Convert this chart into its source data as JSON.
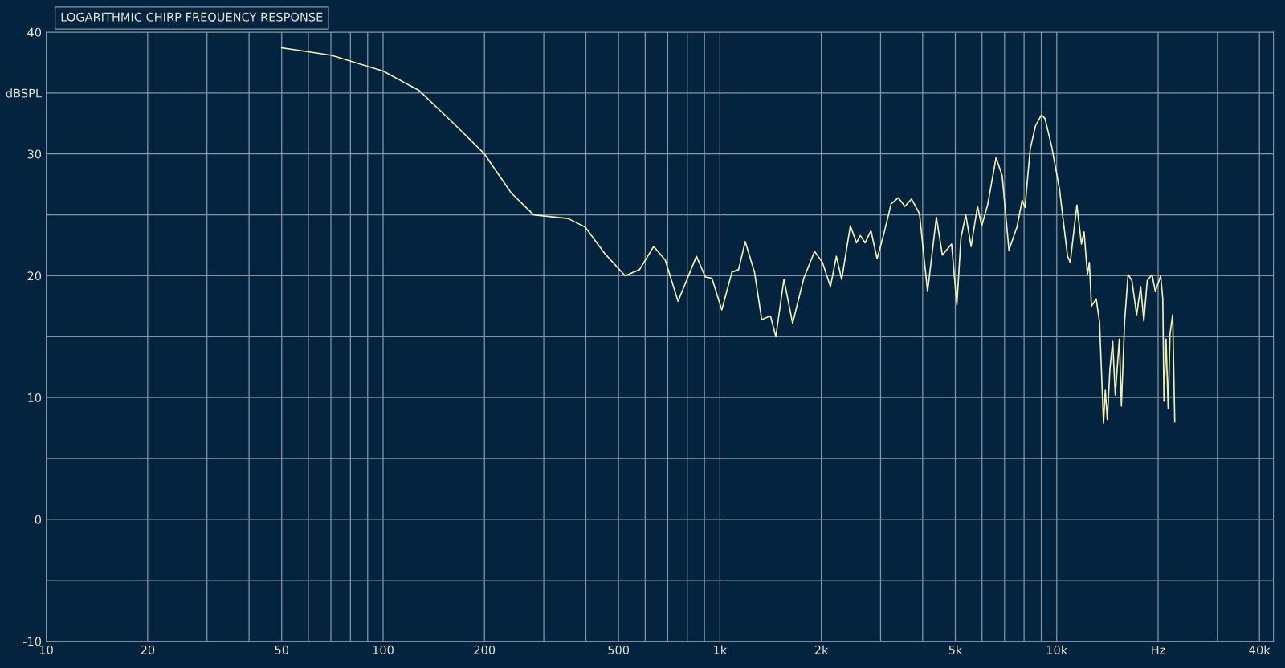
{
  "chart_data": {
    "type": "line",
    "title": "LOGARITHMIC CHIRP FREQUENCY RESPONSE",
    "log": "x",
    "grid": true,
    "marker": "none",
    "line_style": "solid",
    "xlim": [
      10,
      44000
    ],
    "ylim": [
      -10,
      40
    ],
    "xticks": [
      10,
      20,
      {
        "value": 30,
        "label": null
      },
      {
        "value": 40,
        "label": null
      },
      50,
      {
        "value": 60,
        "label": null
      },
      {
        "value": 70,
        "label": null
      },
      {
        "value": 80,
        "label": null
      },
      {
        "value": 90,
        "label": null
      },
      100,
      200,
      {
        "value": 300,
        "label": null
      },
      {
        "value": 400,
        "label": null
      },
      500,
      {
        "value": 600,
        "label": null
      },
      {
        "value": 700,
        "label": null
      },
      {
        "value": 800,
        "label": null
      },
      {
        "value": 900,
        "label": null
      },
      {
        "value": 1000,
        "label": "1k"
      },
      {
        "value": 2000,
        "label": "2k"
      },
      {
        "value": 3000,
        "label": null
      },
      {
        "value": 4000,
        "label": null
      },
      {
        "value": 5000,
        "label": "5k"
      },
      {
        "value": 6000,
        "label": null
      },
      {
        "value": 7000,
        "label": null
      },
      {
        "value": 8000,
        "label": null
      },
      {
        "value": 9000,
        "label": null
      },
      {
        "value": 10000,
        "label": "10k"
      },
      {
        "value": 20000,
        "label": "Hz"
      },
      {
        "value": 30000,
        "label": null
      },
      {
        "value": 40000,
        "label": "40k"
      }
    ],
    "yticks": [
      -10,
      {
        "value": -5,
        "label": null
      },
      0,
      {
        "value": 5,
        "label": null
      },
      10,
      {
        "value": 15,
        "label": null
      },
      20,
      {
        "value": 25,
        "label": null
      },
      30,
      {
        "value": 35,
        "label": "dBSPL"
      },
      40
    ],
    "series": [
      {
        "color": "#f0f0b4",
        "x": [
          50,
          70,
          100,
          128,
          162,
          200,
          240,
          280,
          354,
          398,
          456,
          523,
          577,
          636,
          688,
          751,
          852,
          905,
          947,
          1013,
          1086,
          1136,
          1189,
          1267,
          1331,
          1413,
          1466,
          1549,
          1644,
          1775,
          1910,
          2016,
          2129,
          2217,
          2299,
          2440,
          2544,
          2612,
          2699,
          2808,
          2929,
          3065,
          3224,
          3385,
          3543,
          3707,
          3914,
          4136,
          4393,
          4575,
          4874,
          5053,
          5196,
          5371,
          5570,
          5819,
          5989,
          6234,
          6608,
          6888,
          7214,
          7621,
          7897,
          8050,
          8343,
          8650,
          9010,
          9229,
          9663,
          10193,
          10768,
          10966,
          11480,
          11840,
          12058,
          12338,
          12500,
          12680,
          13100,
          13400,
          13770,
          13940,
          14130,
          14390,
          14660,
          14920,
          15340,
          15560,
          15910,
          16290,
          16720,
          17270,
          17750,
          18140,
          18570,
          19190,
          19620,
          20350,
          20650,
          20810,
          21110,
          21420,
          21690,
          22090,
          22410
        ],
        "values": [
          38.7,
          38.1,
          36.8,
          35.2,
          32.5,
          30.0,
          26.8,
          25.0,
          24.7,
          24.0,
          21.8,
          20.0,
          20.5,
          22.4,
          21.3,
          17.9,
          21.6,
          19.9,
          19.8,
          17.2,
          20.3,
          20.5,
          22.8,
          20.3,
          16.4,
          16.7,
          15.0,
          19.7,
          16.1,
          19.8,
          22.0,
          21.1,
          19.1,
          21.6,
          19.7,
          24.1,
          22.7,
          23.3,
          22.7,
          23.7,
          21.4,
          23.4,
          25.9,
          26.4,
          25.7,
          26.3,
          25.1,
          18.7,
          24.8,
          21.7,
          22.6,
          17.6,
          23.1,
          25.0,
          22.4,
          25.7,
          24.1,
          25.8,
          29.7,
          28.2,
          22.1,
          24.0,
          26.2,
          25.6,
          30.4,
          32.3,
          33.2,
          32.9,
          30.6,
          27.1,
          21.6,
          21.1,
          25.8,
          22.6,
          23.6,
          20.1,
          21.1,
          17.5,
          18.1,
          16.2,
          7.9,
          10.6,
          8.2,
          12.4,
          14.6,
          10.2,
          14.8,
          9.3,
          16.3,
          20.1,
          19.6,
          16.8,
          19.1,
          16.3,
          19.6,
          20.1,
          18.7,
          20.0,
          18.1,
          9.7,
          14.8,
          9.1,
          15.2,
          16.8,
          8.0
        ]
      }
    ]
  }
}
